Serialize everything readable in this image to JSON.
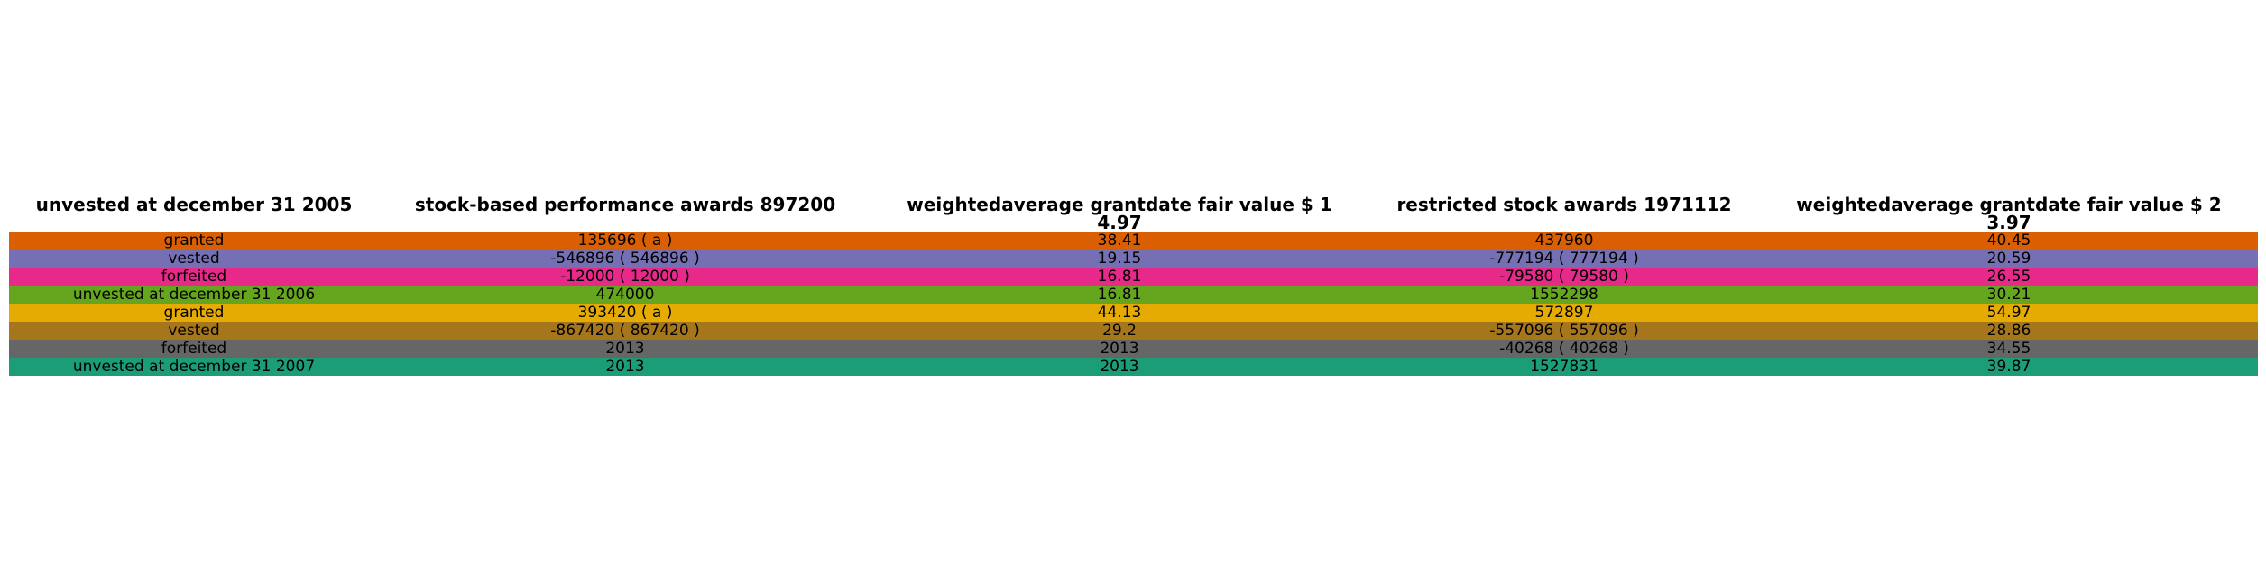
{
  "chart_data": {
    "type": "table",
    "columns": [
      {
        "line1": "unvested at december 31 2005",
        "line2": ""
      },
      {
        "line1": "stock-based performance awards 897200",
        "line2": ""
      },
      {
        "line1": "weightedaverage grantdate fair value $ 1",
        "line2": "4.97"
      },
      {
        "line1": "restricted stock awards 1971112",
        "line2": ""
      },
      {
        "line1": "weightedaverage grantdate fair value $ 2",
        "line2": "3.97"
      }
    ],
    "rows": [
      {
        "color": "#d95f02",
        "cells": [
          "granted",
          "135696 ( a )",
          "38.41",
          "437960",
          "40.45"
        ]
      },
      {
        "color": "#7570b3",
        "cells": [
          "vested",
          "-546896 ( 546896 )",
          "19.15",
          "-777194 ( 777194 )",
          "20.59"
        ]
      },
      {
        "color": "#e7298a",
        "cells": [
          "forfeited",
          "-12000 ( 12000 )",
          "16.81",
          "-79580 ( 79580 )",
          "26.55"
        ]
      },
      {
        "color": "#66a61e",
        "cells": [
          "unvested at december 31 2006",
          "474000",
          "16.81",
          "1552298",
          "30.21"
        ]
      },
      {
        "color": "#e6ab02",
        "cells": [
          "granted",
          "393420 ( a )",
          "44.13",
          "572897",
          "54.97"
        ]
      },
      {
        "color": "#a6761d",
        "cells": [
          "vested",
          "-867420 ( 867420 )",
          "29.2",
          "-557096 ( 557096 )",
          "28.86"
        ]
      },
      {
        "color": "#666666",
        "cells": [
          "forfeited",
          "2013",
          "2013",
          "-40268 ( 40268 )",
          "34.55"
        ]
      },
      {
        "color": "#1b9e77",
        "cells": [
          "unvested at december 31 2007",
          "2013",
          "2013",
          "1527831",
          "39.87"
        ]
      }
    ]
  }
}
